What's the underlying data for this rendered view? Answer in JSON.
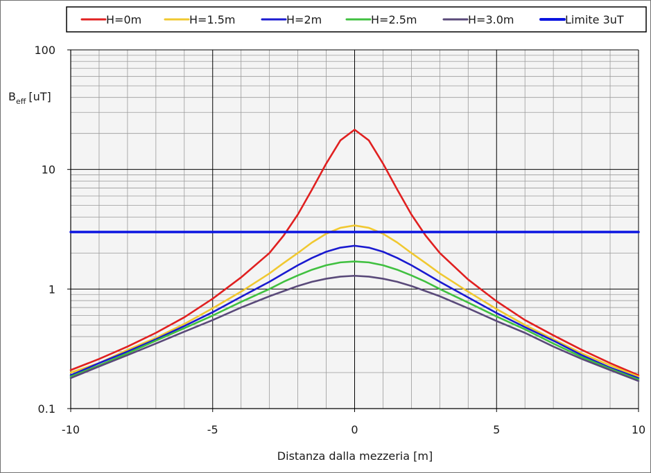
{
  "chart_data": {
    "type": "line",
    "title": "",
    "xlabel": "Distanza dalla mezzeria [m]",
    "ylabel": {
      "main": "B",
      "subscript": "eff",
      "unit": "[uT]"
    },
    "xlim": [
      -10,
      10
    ],
    "ylim": [
      0.1,
      100
    ],
    "yscale": "log",
    "grid": true,
    "legend_position": "top",
    "x_ticks": [
      "-10",
      "-5",
      "0",
      "5",
      "10"
    ],
    "y_ticks": [
      "0.1",
      "1",
      "10",
      "100"
    ],
    "x": [
      -10,
      -9,
      -8,
      -7,
      -6,
      -5,
      -4,
      -3,
      -2.5,
      -2,
      -1.5,
      -1,
      -0.5,
      0,
      0.5,
      1,
      1.5,
      2,
      2.5,
      3,
      4,
      5,
      6,
      7,
      8,
      9,
      10
    ],
    "series": [
      {
        "name": "H=0m",
        "color": "#e02020",
        "values": [
          0.21,
          0.26,
          0.33,
          0.43,
          0.58,
          0.83,
          1.25,
          2.0,
          2.8,
          4.2,
          6.8,
          11.2,
          17.5,
          21.5,
          17.5,
          11.2,
          6.8,
          4.2,
          2.8,
          2.0,
          1.2,
          0.79,
          0.55,
          0.41,
          0.31,
          0.24,
          0.19
        ]
      },
      {
        "name": "H=1.5m",
        "color": "#f0c830",
        "values": [
          0.2,
          0.24,
          0.31,
          0.39,
          0.51,
          0.69,
          0.95,
          1.35,
          1.65,
          2.0,
          2.45,
          2.9,
          3.25,
          3.4,
          3.25,
          2.9,
          2.45,
          2.0,
          1.65,
          1.35,
          0.95,
          0.68,
          0.5,
          0.38,
          0.29,
          0.23,
          0.185
        ]
      },
      {
        "name": "H=2m",
        "color": "#1a1ad0",
        "values": [
          0.19,
          0.24,
          0.3,
          0.38,
          0.49,
          0.64,
          0.86,
          1.15,
          1.35,
          1.58,
          1.82,
          2.05,
          2.22,
          2.3,
          2.22,
          2.05,
          1.82,
          1.58,
          1.35,
          1.15,
          0.85,
          0.63,
          0.48,
          0.37,
          0.28,
          0.22,
          0.18
        ]
      },
      {
        "name": "H=2.5m",
        "color": "#40c040",
        "values": [
          0.185,
          0.23,
          0.29,
          0.37,
          0.47,
          0.6,
          0.78,
          1.0,
          1.15,
          1.3,
          1.45,
          1.58,
          1.67,
          1.7,
          1.67,
          1.58,
          1.45,
          1.3,
          1.15,
          1.0,
          0.77,
          0.59,
          0.46,
          0.35,
          0.27,
          0.215,
          0.175
        ]
      },
      {
        "name": "H=3.0m",
        "color": "#5a4a7a",
        "values": [
          0.18,
          0.225,
          0.28,
          0.35,
          0.44,
          0.55,
          0.7,
          0.87,
          0.96,
          1.06,
          1.15,
          1.22,
          1.27,
          1.29,
          1.27,
          1.22,
          1.15,
          1.06,
          0.96,
          0.87,
          0.69,
          0.54,
          0.43,
          0.33,
          0.26,
          0.21,
          0.17
        ]
      },
      {
        "name": "Limite 3uT",
        "color": "#0a14e0",
        "values": [
          3,
          3,
          3,
          3,
          3,
          3,
          3,
          3,
          3,
          3,
          3,
          3,
          3,
          3,
          3,
          3,
          3,
          3,
          3,
          3,
          3,
          3,
          3,
          3,
          3,
          3,
          3
        ]
      }
    ]
  }
}
